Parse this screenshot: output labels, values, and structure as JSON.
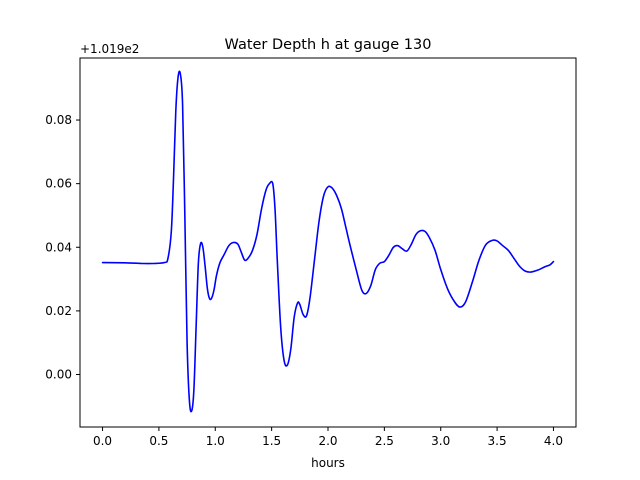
{
  "chart_data": {
    "type": "line",
    "title": "Water Depth h at gauge 130",
    "xlabel": "hours",
    "ylabel": "",
    "offset_label": "+1.019e2",
    "xlim": [
      -0.2,
      4.2
    ],
    "ylim": [
      -0.0165,
      0.0995
    ],
    "x_ticks": [
      0.0,
      0.5,
      1.0,
      1.5,
      2.0,
      2.5,
      3.0,
      3.5,
      4.0
    ],
    "x_tick_labels": [
      "0.0",
      "0.5",
      "1.0",
      "1.5",
      "2.0",
      "2.5",
      "3.0",
      "3.5",
      "4.0"
    ],
    "y_ticks": [
      0.0,
      0.02,
      0.04,
      0.06,
      0.08
    ],
    "y_tick_labels": [
      "0.00",
      "0.02",
      "0.04",
      "0.06",
      "0.08"
    ],
    "grid": false,
    "line_color": "#0000ff",
    "series": [
      {
        "x": [
          0.0,
          0.2,
          0.3,
          0.35,
          0.45,
          0.55,
          0.58,
          0.61,
          0.63,
          0.65,
          0.67,
          0.69,
          0.71,
          0.73,
          0.75,
          0.77,
          0.79,
          0.81,
          0.83,
          0.85,
          0.87,
          0.89,
          0.91,
          0.93,
          0.95,
          0.97,
          0.99,
          1.01,
          1.04,
          1.08,
          1.12,
          1.16,
          1.2,
          1.23,
          1.26,
          1.29,
          1.33,
          1.37,
          1.41,
          1.45,
          1.48,
          1.51,
          1.53,
          1.55,
          1.58,
          1.61,
          1.64,
          1.67,
          1.7,
          1.73,
          1.75,
          1.78,
          1.81,
          1.84,
          1.88,
          1.92,
          1.96,
          2.0,
          2.04,
          2.08,
          2.12,
          2.16,
          2.2,
          2.25,
          2.3,
          2.34,
          2.38,
          2.42,
          2.46,
          2.5,
          2.54,
          2.58,
          2.62,
          2.66,
          2.7,
          2.74,
          2.78,
          2.82,
          2.86,
          2.9,
          2.95,
          3.0,
          3.06,
          3.12,
          3.17,
          3.22,
          3.28,
          3.34,
          3.4,
          3.46,
          3.5,
          3.55,
          3.6,
          3.65,
          3.7,
          3.75,
          3.8,
          3.86,
          3.92,
          3.97,
          4.0
        ],
        "y": [
          0.0352,
          0.0351,
          0.035,
          0.0349,
          0.0349,
          0.0352,
          0.0365,
          0.045,
          0.062,
          0.083,
          0.0935,
          0.0945,
          0.085,
          0.05,
          0.01,
          -0.008,
          -0.0115,
          -0.005,
          0.015,
          0.035,
          0.0412,
          0.04,
          0.034,
          0.027,
          0.0238,
          0.0242,
          0.0268,
          0.031,
          0.035,
          0.0378,
          0.0405,
          0.0415,
          0.041,
          0.0385,
          0.036,
          0.0365,
          0.039,
          0.044,
          0.052,
          0.058,
          0.06,
          0.06,
          0.052,
          0.036,
          0.015,
          0.0045,
          0.003,
          0.008,
          0.018,
          0.0225,
          0.022,
          0.0188,
          0.0185,
          0.024,
          0.036,
          0.048,
          0.056,
          0.059,
          0.0585,
          0.056,
          0.052,
          0.046,
          0.04,
          0.033,
          0.0265,
          0.0255,
          0.028,
          0.033,
          0.035,
          0.0355,
          0.0375,
          0.04,
          0.0405,
          0.0395,
          0.0388,
          0.041,
          0.044,
          0.0452,
          0.045,
          0.043,
          0.039,
          0.033,
          0.027,
          0.023,
          0.0212,
          0.0228,
          0.029,
          0.036,
          0.0408,
          0.0422,
          0.042,
          0.0405,
          0.039,
          0.0365,
          0.034,
          0.0325,
          0.0322,
          0.0328,
          0.0338,
          0.0345,
          0.0355
        ]
      }
    ]
  }
}
